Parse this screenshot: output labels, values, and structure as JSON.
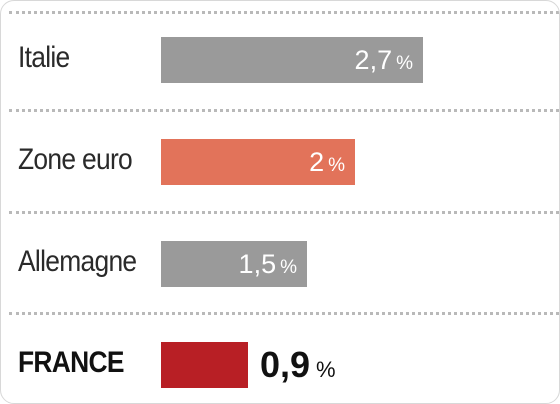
{
  "chart_data": {
    "type": "bar",
    "orientation": "horizontal",
    "categories": [
      "Italie",
      "Zone euro",
      "Allemagne",
      "FRANCE"
    ],
    "values": [
      2.7,
      2,
      1.5,
      0.9
    ],
    "value_labels": [
      "2,7",
      "2",
      "1,5",
      "0,9"
    ],
    "unit": "%",
    "colors": [
      "#9a9a9a",
      "#e2735a",
      "#9a9a9a",
      "#b81f25"
    ],
    "highlight": "FRANCE",
    "xlim": [
      0,
      2.7
    ],
    "grid": false,
    "legend": "none"
  }
}
